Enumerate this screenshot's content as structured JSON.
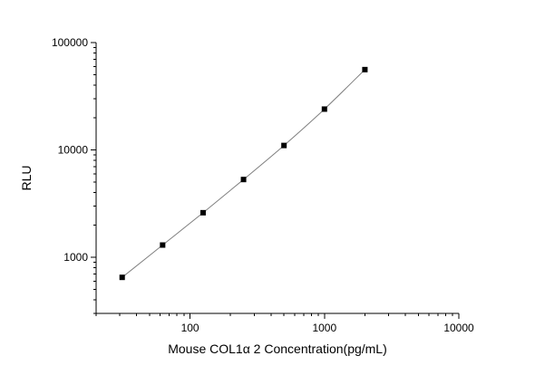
{
  "chart_data": {
    "type": "scatter",
    "xlabel": "Mouse COL1α 2 Concentration(pg/mL)",
    "ylabel": "RLU",
    "x_scale": "log",
    "y_scale": "log",
    "xlim": [
      20,
      10000
    ],
    "ylim": [
      300,
      100000
    ],
    "x_ticks": [
      {
        "value": 100,
        "label": "100"
      },
      {
        "value": 1000,
        "label": "1000"
      },
      {
        "value": 10000,
        "label": "10000"
      }
    ],
    "y_ticks": [
      {
        "value": 1000,
        "label": "1000"
      },
      {
        "value": 10000,
        "label": "10000"
      },
      {
        "value": 100000,
        "label": "100000"
      }
    ],
    "grid": false,
    "legend": "none",
    "series": [
      {
        "x": [
          31.25,
          62.5,
          125,
          250,
          500,
          1000,
          2000
        ],
        "y": [
          650,
          1300,
          2600,
          5300,
          11000,
          24000,
          56000
        ],
        "marker": "square",
        "fit_line": true
      }
    ],
    "colors": {
      "points": "#000000",
      "fit_line": "#7f7f7f",
      "axes": "#000000"
    }
  }
}
